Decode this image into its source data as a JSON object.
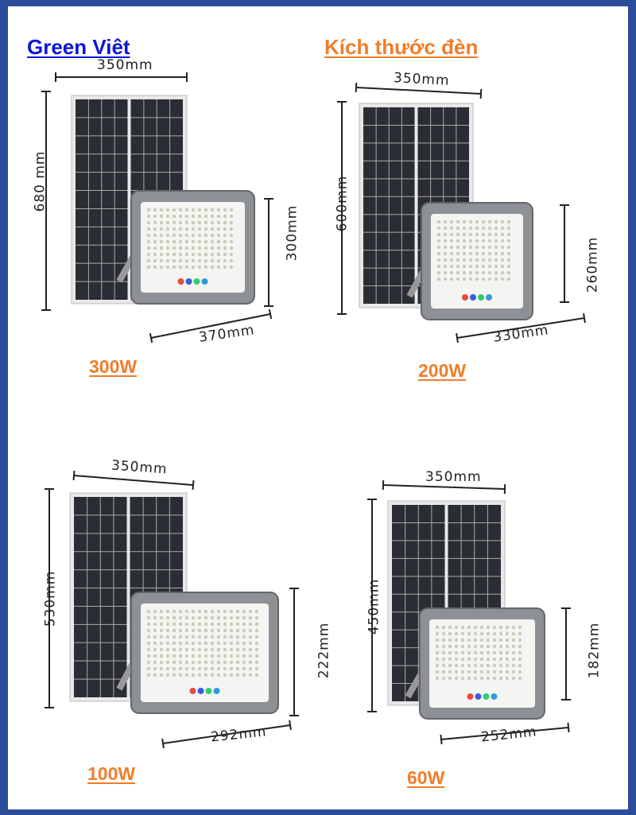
{
  "brand": "Green Viêt",
  "title": "Kích thước đèn",
  "colors": {
    "border": "#2b4c9b",
    "brand": "#0b16d6",
    "accent": "#f07d2a",
    "panel": "#2a2d33"
  },
  "products": [
    {
      "watt": "300W",
      "panel_width": "350mm",
      "panel_height": "680 mm",
      "light_height": "300mm",
      "light_width": "370mm"
    },
    {
      "watt": "200W",
      "panel_width": "350mm",
      "panel_height": "600mm",
      "light_height": "260mm",
      "light_width": "330mm"
    },
    {
      "watt": "100W",
      "panel_width": "350mm",
      "panel_height": "530mm",
      "light_height": "222mm",
      "light_width": "292mm"
    },
    {
      "watt": "60W",
      "panel_width": "350mm",
      "panel_height": "450mm",
      "light_height": "182mm",
      "light_width": "252mm"
    }
  ]
}
